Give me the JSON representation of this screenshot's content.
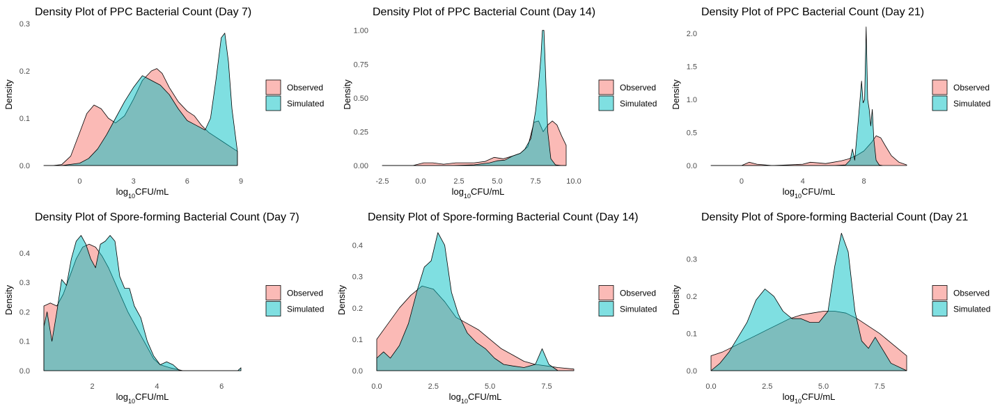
{
  "chart_data": [
    {
      "type": "area",
      "title": "Density Plot of PPC Bacterial Count (Day 7)",
      "xlabel": "log₁₀CFU/mL",
      "ylabel": "Density",
      "xlim": [
        -2.0,
        9.0
      ],
      "ylim": [
        0,
        0.3
      ],
      "xticks": [
        0,
        3,
        6,
        9
      ],
      "xtick_labels": [
        "0",
        "3",
        "6",
        "9"
      ],
      "yticks": [
        0.0,
        0.1,
        0.2,
        0.3
      ],
      "ytick_labels": [
        "0.0",
        "0.1",
        "0.2",
        "0.3"
      ],
      "legend": [
        "Observed",
        "Simulated"
      ],
      "series": [
        {
          "name": "Observed",
          "color": "#F8766D",
          "x": [
            -2.0,
            -1.5,
            -1.0,
            -0.5,
            0.0,
            0.4,
            0.8,
            1.2,
            1.6,
            2.0,
            2.5,
            3.0,
            3.5,
            4.0,
            4.3,
            4.6,
            5.0,
            5.5,
            6.0,
            6.4,
            6.8,
            7.2,
            7.6,
            8.0,
            8.4,
            8.8
          ],
          "y": [
            0.0,
            0.0,
            0.002,
            0.02,
            0.07,
            0.11,
            0.128,
            0.12,
            0.1,
            0.09,
            0.105,
            0.14,
            0.18,
            0.2,
            0.205,
            0.195,
            0.165,
            0.135,
            0.115,
            0.105,
            0.085,
            0.07,
            0.06,
            0.05,
            0.04,
            0.03
          ]
        },
        {
          "name": "Simulated",
          "color": "#00BFC4",
          "x": [
            -2.0,
            -1.0,
            0.0,
            0.5,
            1.0,
            1.5,
            2.0,
            2.5,
            3.0,
            3.5,
            4.0,
            4.5,
            5.0,
            5.5,
            6.0,
            6.5,
            7.0,
            7.3,
            7.6,
            7.9,
            8.1,
            8.3,
            8.5,
            8.8
          ],
          "y": [
            0.0,
            0.0,
            0.005,
            0.015,
            0.035,
            0.065,
            0.1,
            0.135,
            0.165,
            0.19,
            0.18,
            0.17,
            0.15,
            0.12,
            0.095,
            0.085,
            0.075,
            0.1,
            0.18,
            0.27,
            0.28,
            0.22,
            0.12,
            0.03
          ]
        }
      ]
    },
    {
      "type": "area",
      "title": "Density Plot of PPC Bacterial Count (Day 14)",
      "xlabel": "log₁₀CFU/mL",
      "ylabel": "Density",
      "xlim": [
        -2.5,
        10.0
      ],
      "ylim": [
        0,
        1.05
      ],
      "xticks": [
        -2.5,
        0.0,
        2.5,
        5.0,
        7.5,
        10.0
      ],
      "xtick_labels": [
        "-2.5",
        "0.0",
        "2.5",
        "5.0",
        "7.5",
        "10.0"
      ],
      "yticks": [
        0.0,
        0.25,
        0.5,
        0.75,
        1.0
      ],
      "ytick_labels": [
        "0.00",
        "0.25",
        "0.50",
        "0.75",
        "1.00"
      ],
      "legend": [
        "Observed",
        "Simulated"
      ],
      "series": [
        {
          "name": "Observed",
          "color": "#F8766D",
          "x": [
            -2.5,
            -0.5,
            0.2,
            0.8,
            1.5,
            2.3,
            2.8,
            3.5,
            4.2,
            4.8,
            5.4,
            6.0,
            6.5,
            7.0,
            7.4,
            7.7,
            8.0,
            8.3,
            8.6,
            8.9,
            9.2,
            9.5
          ],
          "y": [
            0.0,
            0.0,
            0.02,
            0.02,
            0.01,
            0.02,
            0.02,
            0.02,
            0.03,
            0.06,
            0.05,
            0.07,
            0.09,
            0.14,
            0.32,
            0.33,
            0.25,
            0.3,
            0.33,
            0.3,
            0.22,
            0.15
          ]
        },
        {
          "name": "Simulated",
          "color": "#00BFC4",
          "x": [
            -2.5,
            0.0,
            2.0,
            3.5,
            4.5,
            5.0,
            5.5,
            6.0,
            6.5,
            6.8,
            7.2,
            7.5,
            7.7,
            7.85,
            7.95,
            8.05,
            8.15,
            8.3,
            8.5,
            8.8,
            9.2,
            9.5
          ],
          "y": [
            0.0,
            0.0,
            0.0,
            0.005,
            0.02,
            0.035,
            0.04,
            0.07,
            0.09,
            0.12,
            0.2,
            0.4,
            0.6,
            0.8,
            1.0,
            1.0,
            0.7,
            0.25,
            0.05,
            0.005,
            0.0,
            0.0
          ]
        }
      ]
    },
    {
      "type": "area",
      "title": "Density Plot of PPC Bacterial Count (Day 21)",
      "xlabel": "log₁₀CFU/mL",
      "ylabel": "Density",
      "xlim": [
        -2.0,
        10.8
      ],
      "ylim": [
        0,
        2.15
      ],
      "xticks": [
        0,
        4,
        8
      ],
      "xtick_labels": [
        "0",
        "4",
        "8"
      ],
      "yticks": [
        0.0,
        0.5,
        1.0,
        1.5,
        2.0
      ],
      "ytick_labels": [
        "0.0",
        "0.5",
        "1.0",
        "1.5",
        "2.0"
      ],
      "legend": [
        "Observed",
        "Simulated"
      ],
      "series": [
        {
          "name": "Observed",
          "color": "#F8766D",
          "x": [
            -2.0,
            0.0,
            0.5,
            1.0,
            2.0,
            3.0,
            4.0,
            4.5,
            5.0,
            5.5,
            6.0,
            6.5,
            7.0,
            7.5,
            8.0,
            8.5,
            8.8,
            9.1,
            9.4,
            9.8,
            10.3,
            10.8
          ],
          "y": [
            0.0,
            0.0,
            0.05,
            0.02,
            0.0,
            0.01,
            0.02,
            0.05,
            0.04,
            0.03,
            0.05,
            0.07,
            0.1,
            0.15,
            0.22,
            0.35,
            0.45,
            0.42,
            0.3,
            0.15,
            0.05,
            0.01
          ]
        },
        {
          "name": "Simulated",
          "color": "#00BFC4",
          "x": [
            -2.0,
            6.0,
            6.8,
            7.1,
            7.25,
            7.4,
            7.6,
            7.75,
            7.85,
            7.95,
            8.05,
            8.15,
            8.25,
            8.35,
            8.45,
            8.55,
            8.65,
            8.8,
            9.0,
            9.2
          ],
          "y": [
            0.0,
            0.0,
            0.01,
            0.08,
            0.25,
            0.08,
            0.6,
            1.0,
            1.28,
            0.95,
            1.0,
            2.1,
            1.0,
            0.85,
            0.6,
            0.85,
            0.4,
            0.08,
            0.01,
            0.0
          ]
        }
      ]
    },
    {
      "type": "area",
      "title": "Density Plot of Spore-forming Bacterial Count (Day 7)",
      "xlabel": "log₁₀CFU/mL",
      "ylabel": "Density",
      "xlim": [
        0.5,
        6.6
      ],
      "ylim": [
        0,
        0.48
      ],
      "xticks": [
        2,
        4,
        6
      ],
      "xtick_labels": [
        "2",
        "4",
        "6"
      ],
      "yticks": [
        0.0,
        0.1,
        0.2,
        0.3,
        0.4
      ],
      "ytick_labels": [
        "0.0",
        "0.1",
        "0.2",
        "0.3",
        "0.4"
      ],
      "legend": [
        "Observed",
        "Simulated"
      ],
      "series": [
        {
          "name": "Observed",
          "color": "#F8766D",
          "x": [
            0.5,
            0.7,
            0.9,
            1.1,
            1.3,
            1.5,
            1.7,
            1.9,
            2.1,
            2.3,
            2.5,
            2.7,
            2.9,
            3.1,
            3.3,
            3.5,
            3.7,
            3.9,
            4.1,
            4.4,
            4.8,
            5.5,
            6.6
          ],
          "y": [
            0.22,
            0.23,
            0.22,
            0.26,
            0.32,
            0.38,
            0.42,
            0.43,
            0.42,
            0.39,
            0.35,
            0.3,
            0.25,
            0.2,
            0.16,
            0.12,
            0.08,
            0.04,
            0.02,
            0.01,
            0.0,
            0.0,
            0.0
          ]
        },
        {
          "name": "Simulated",
          "color": "#00BFC4",
          "x": [
            0.5,
            0.6,
            0.75,
            0.9,
            1.05,
            1.2,
            1.35,
            1.5,
            1.65,
            1.8,
            1.95,
            2.1,
            2.25,
            2.4,
            2.55,
            2.7,
            2.85,
            3.0,
            3.15,
            3.3,
            3.5,
            3.7,
            3.9,
            4.1,
            4.3,
            4.5,
            4.7,
            5.0,
            6.0,
            6.5,
            6.6
          ],
          "y": [
            0.15,
            0.2,
            0.1,
            0.2,
            0.31,
            0.29,
            0.38,
            0.44,
            0.46,
            0.43,
            0.38,
            0.35,
            0.43,
            0.44,
            0.46,
            0.44,
            0.32,
            0.28,
            0.28,
            0.22,
            0.18,
            0.1,
            0.05,
            0.02,
            0.03,
            0.02,
            0.0,
            0.0,
            0.0,
            0.0,
            0.01
          ]
        }
      ]
    },
    {
      "type": "area",
      "title": "Density Plot of Spore-forming Bacterial Count (Day 14)",
      "xlabel": "log₁₀CFU/mL",
      "ylabel": "Density",
      "xlim": [
        0.0,
        8.7
      ],
      "ylim": [
        0,
        0.45
      ],
      "xticks": [
        0.0,
        2.5,
        5.0,
        7.5
      ],
      "xtick_labels": [
        "0.0",
        "2.5",
        "5.0",
        "7.5"
      ],
      "yticks": [
        0.0,
        0.1,
        0.2,
        0.3,
        0.4
      ],
      "ytick_labels": [
        "0.0",
        "0.1",
        "0.2",
        "0.3",
        "0.4"
      ],
      "legend": [
        "Observed",
        "Simulated"
      ],
      "series": [
        {
          "name": "Observed",
          "color": "#F8766D",
          "x": [
            0.0,
            0.5,
            1.0,
            1.5,
            2.0,
            2.5,
            3.0,
            3.5,
            4.0,
            4.5,
            5.0,
            5.5,
            6.0,
            6.5,
            7.0,
            7.5,
            8.0,
            8.7
          ],
          "y": [
            0.1,
            0.15,
            0.2,
            0.24,
            0.27,
            0.26,
            0.22,
            0.17,
            0.15,
            0.13,
            0.1,
            0.07,
            0.05,
            0.03,
            0.02,
            0.015,
            0.01,
            0.005
          ]
        },
        {
          "name": "Simulated",
          "color": "#00BFC4",
          "x": [
            0.0,
            0.3,
            0.6,
            1.0,
            1.4,
            1.8,
            2.1,
            2.4,
            2.7,
            3.0,
            3.3,
            3.6,
            4.0,
            4.4,
            4.8,
            5.2,
            5.6,
            6.0,
            6.5,
            7.0,
            7.3,
            7.6,
            8.0,
            8.7
          ],
          "y": [
            0.04,
            0.06,
            0.04,
            0.08,
            0.15,
            0.26,
            0.33,
            0.35,
            0.44,
            0.4,
            0.25,
            0.18,
            0.12,
            0.09,
            0.07,
            0.04,
            0.02,
            0.015,
            0.01,
            0.02,
            0.07,
            0.02,
            0.0,
            0.0
          ]
        }
      ]
    },
    {
      "type": "area",
      "title": "Density Plot of Spore-forming Bacterial Count (Day 21",
      "xlabel": "log₁₀CFU/mL",
      "ylabel": "Density",
      "xlim": [
        0.0,
        8.7
      ],
      "ylim": [
        0,
        0.38
      ],
      "xticks": [
        0.0,
        2.5,
        5.0,
        7.5
      ],
      "xtick_labels": [
        "0.0",
        "2.5",
        "5.0",
        "7.5"
      ],
      "yticks": [
        0.0,
        0.1,
        0.2,
        0.3
      ],
      "ytick_labels": [
        "0.0",
        "0.1",
        "0.2",
        "0.3"
      ],
      "legend": [
        "Observed",
        "Simulated"
      ],
      "series": [
        {
          "name": "Observed",
          "color": "#F8766D",
          "x": [
            0.0,
            0.5,
            1.0,
            1.5,
            2.0,
            2.5,
            3.0,
            3.5,
            4.0,
            4.5,
            5.0,
            5.5,
            6.0,
            6.5,
            7.0,
            7.5,
            8.0,
            8.7
          ],
          "y": [
            0.04,
            0.05,
            0.065,
            0.08,
            0.095,
            0.11,
            0.125,
            0.14,
            0.15,
            0.155,
            0.16,
            0.16,
            0.155,
            0.14,
            0.12,
            0.1,
            0.075,
            0.04
          ]
        },
        {
          "name": "Simulated",
          "color": "#00BFC4",
          "x": [
            0.0,
            0.4,
            0.8,
            1.2,
            1.6,
            2.0,
            2.4,
            2.8,
            3.2,
            3.6,
            4.0,
            4.4,
            4.8,
            5.2,
            5.5,
            5.8,
            6.1,
            6.4,
            6.7,
            7.0,
            7.3,
            7.6,
            8.0,
            8.7
          ],
          "y": [
            0.0,
            0.02,
            0.05,
            0.09,
            0.13,
            0.19,
            0.22,
            0.2,
            0.16,
            0.14,
            0.14,
            0.13,
            0.13,
            0.16,
            0.28,
            0.37,
            0.32,
            0.16,
            0.08,
            0.06,
            0.09,
            0.06,
            0.02,
            0.0
          ]
        }
      ]
    }
  ]
}
